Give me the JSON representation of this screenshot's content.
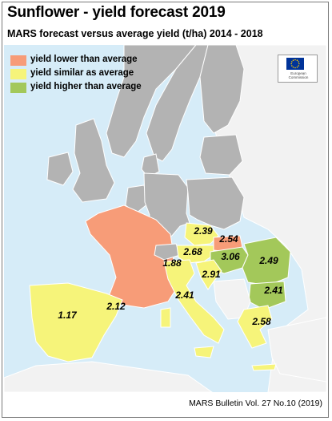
{
  "title": "Sunflower - yield forecast 2019",
  "subtitle": "MARS forecast versus average yield (t/ha) 2014 - 2018",
  "legend": [
    {
      "label": "yield lower than average",
      "color": "#f79c78"
    },
    {
      "label": "yield similar as average",
      "color": "#f6f47a"
    },
    {
      "label": "yield higher than average",
      "color": "#a3c85a"
    }
  ],
  "logo": {
    "text": "European\nCommission"
  },
  "colors": {
    "sea": "#d6ecf8",
    "no_data_country": "#b3b3b3",
    "non_eu_land": "#f2f2f2"
  },
  "countries": [
    {
      "name": "France",
      "value": "1.88",
      "category": "lower"
    },
    {
      "name": "France-west",
      "value": "2.12",
      "category": "lower"
    },
    {
      "name": "Spain",
      "value": "1.17",
      "category": "similar"
    },
    {
      "name": "Czechia",
      "value": "2.39",
      "category": "similar"
    },
    {
      "name": "Slovakia",
      "value": "2.54",
      "category": "lower"
    },
    {
      "name": "Austria",
      "value": "2.68",
      "category": "similar"
    },
    {
      "name": "Hungary",
      "value": "3.06",
      "category": "higher"
    },
    {
      "name": "Romania",
      "value": "2.49",
      "category": "higher"
    },
    {
      "name": "Croatia",
      "value": "2.91",
      "category": "similar"
    },
    {
      "name": "Bulgaria",
      "value": "2.41",
      "category": "higher"
    },
    {
      "name": "Italy",
      "value": "2.41",
      "category": "similar"
    },
    {
      "name": "Greece",
      "value": "2.58",
      "category": "similar"
    }
  ],
  "footer": "MARS Bulletin Vol. 27 No.10 (2019)"
}
